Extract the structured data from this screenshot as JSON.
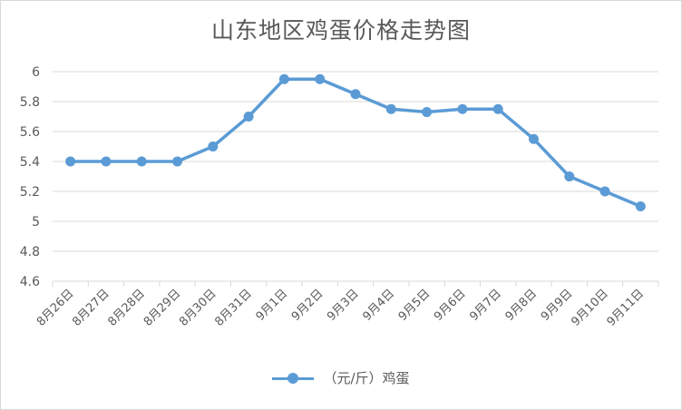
{
  "chart_data": {
    "type": "line",
    "title": "山东地区鸡蛋价格走势图",
    "categories": [
      "8月26日",
      "8月27日",
      "8月28日",
      "8月29日",
      "8月30日",
      "8月31日",
      "9月1日",
      "9月2日",
      "9月3日",
      "9月4日",
      "9月5日",
      "9月6日",
      "9月7日",
      "9月8日",
      "9月9日",
      "9月10日",
      "9月11日"
    ],
    "series": [
      {
        "name": "（元/斤）鸡蛋",
        "values": [
          5.4,
          5.4,
          5.4,
          5.4,
          5.5,
          5.7,
          5.95,
          5.95,
          5.85,
          5.75,
          5.73,
          5.75,
          5.75,
          5.55,
          5.3,
          5.2,
          5.1
        ]
      }
    ],
    "ylim": [
      4.6,
      6.0
    ],
    "yticks": [
      "6",
      "5.8",
      "5.6",
      "5.4",
      "5.2",
      "5",
      "4.8",
      "4.6"
    ],
    "grid": true,
    "legend_position": "bottom",
    "series_color": "#5b9bd5"
  }
}
